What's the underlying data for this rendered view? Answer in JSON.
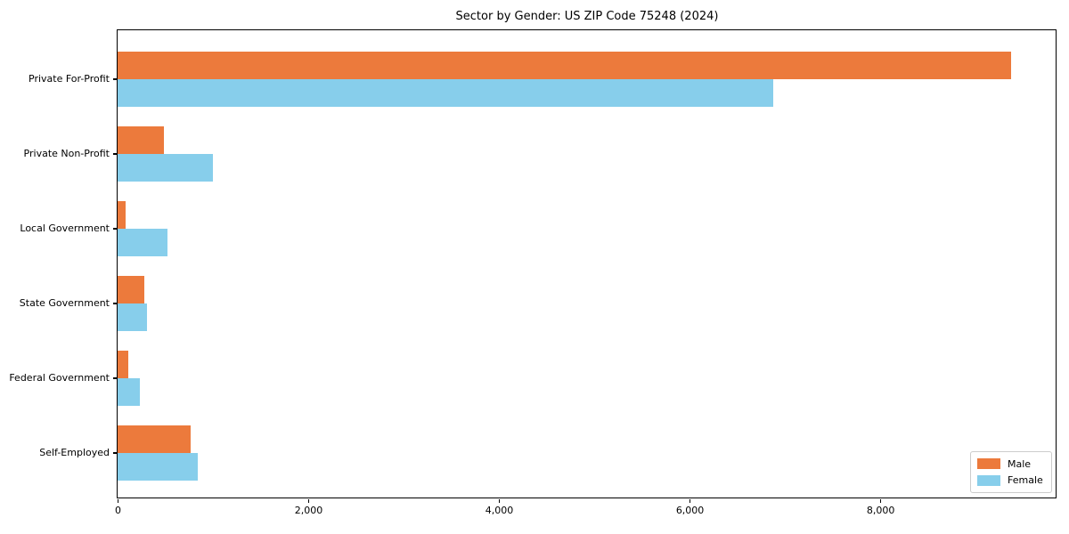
{
  "chart_data": {
    "type": "bar",
    "orientation": "horizontal",
    "title": "Sector by Gender: US ZIP Code 75248 (2024)",
    "xlabel": "",
    "ylabel": "",
    "categories": [
      "Private For-Profit",
      "Private Non-Profit",
      "Local Government",
      "State Government",
      "Federal Government",
      "Self-Employed"
    ],
    "series": [
      {
        "name": "Male",
        "color": "#ec7a3c",
        "values": [
          9370,
          490,
          85,
          280,
          115,
          765
        ]
      },
      {
        "name": "Female",
        "color": "#87ceeb",
        "values": [
          6880,
          1000,
          520,
          310,
          230,
          840
        ]
      }
    ],
    "xlim": [
      0,
      9840
    ],
    "xticks": [
      {
        "value": 0,
        "label": "0"
      },
      {
        "value": 2000,
        "label": "2,000"
      },
      {
        "value": 4000,
        "label": "4,000"
      },
      {
        "value": 6000,
        "label": "6,000"
      },
      {
        "value": 8000,
        "label": "8,000"
      }
    ],
    "grid": false,
    "legend_position": "lower right"
  }
}
